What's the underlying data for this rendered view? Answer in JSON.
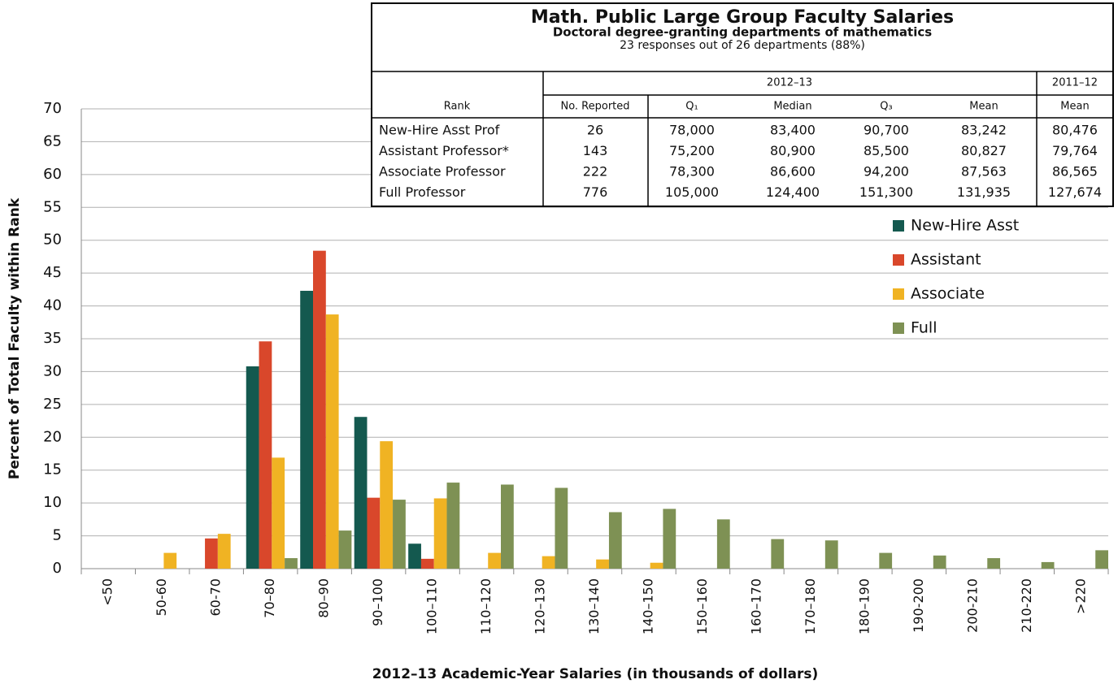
{
  "chart_data": {
    "type": "bar",
    "ylabel": "Percent of Total Faculty within Rank",
    "xlabel": "2012–13 Academic-Year Salaries (in thousands of dollars)",
    "categories": [
      "<50",
      "50-60",
      "60-70",
      "70–80",
      "80–90",
      "90–100",
      "100–110",
      "110–120",
      "120–130",
      "130–140",
      "140–150",
      "150–160",
      "160–170",
      "170–180",
      "180–190",
      "190-200",
      "200-210",
      "210-220",
      ">220"
    ],
    "series": [
      {
        "name": "New-Hire Asst",
        "color": "#14594f",
        "values": [
          0,
          0,
          0,
          30.8,
          42.3,
          23.1,
          3.8,
          0,
          0,
          0,
          0,
          0,
          0,
          0,
          0,
          0,
          0,
          0,
          0
        ]
      },
      {
        "name": "Assistant",
        "color": "#d9472b",
        "values": [
          0,
          0,
          4.6,
          34.6,
          48.4,
          10.8,
          1.5,
          0,
          0,
          0,
          0,
          0,
          0,
          0,
          0,
          0,
          0,
          0,
          0
        ]
      },
      {
        "name": "Associate",
        "color": "#f0b323",
        "values": [
          0,
          2.4,
          5.3,
          16.9,
          38.7,
          19.4,
          10.7,
          2.4,
          1.9,
          1.4,
          0.9,
          0,
          0,
          0,
          0,
          0,
          0,
          0,
          0
        ]
      },
      {
        "name": "Full",
        "color": "#7e9154",
        "values": [
          0,
          0,
          0,
          1.6,
          5.8,
          10.5,
          13.1,
          12.8,
          12.3,
          8.6,
          9.1,
          7.5,
          4.5,
          4.3,
          2.4,
          2.0,
          1.6,
          1.0,
          2.8
        ]
      }
    ],
    "ylim": [
      0,
      70
    ],
    "yticks": [
      0,
      5,
      10,
      15,
      20,
      25,
      30,
      35,
      40,
      45,
      50,
      55,
      60,
      65,
      70
    ],
    "grid": true
  },
  "table": {
    "title": "Math. Public Large Group Faculty Salaries",
    "subtitle": "Doctoral degree-granting departments of mathematics",
    "responses": "23 responses out of 26 departments (88%)",
    "header_groups": [
      "2012–13",
      "2011–12"
    ],
    "columns": [
      "Rank",
      "No. Reported",
      "Q₁",
      "Median",
      "Q₃",
      "Mean",
      "Mean"
    ],
    "rows": [
      [
        "New-Hire Asst Prof",
        "26",
        "78,000",
        "83,400",
        "90,700",
        "83,242",
        "80,476"
      ],
      [
        "Assistant Professor*",
        "143",
        "75,200",
        "80,900",
        "85,500",
        "80,827",
        "79,764"
      ],
      [
        "Associate Professor",
        "222",
        "78,300",
        "86,600",
        "94,200",
        "87,563",
        "86,565"
      ],
      [
        "Full Professor",
        "776",
        "105,000",
        "124,400",
        "151,300",
        "131,935",
        "127,674"
      ]
    ]
  }
}
